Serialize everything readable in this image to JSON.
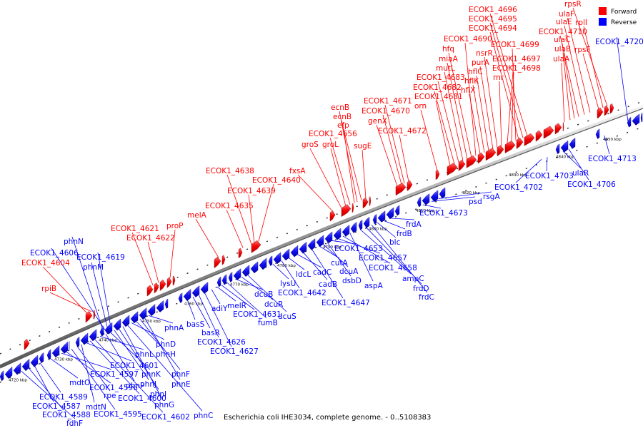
{
  "caption": "Escherichia coli IHE3034, complete genome. - 0..5108383",
  "legend": [
    {
      "label": "Forward",
      "color": "#ff0000"
    },
    {
      "label": "Reverse",
      "color": "#0000ff"
    }
  ],
  "colors": {
    "forward": "#ff0000",
    "reverse": "#0000ff",
    "backbone": "#888888"
  },
  "ticks": [
    "4720 kbp",
    "4730 kbp",
    "4740 kbp",
    "4750 kbp",
    "4760 kbp",
    "4770 kbp",
    "4780 kbp",
    "4790 kbp",
    "4800 kbp",
    "4810 kbp",
    "4820 kbp",
    "4830 kbp",
    "4840 kbp",
    "4850 kbp"
  ],
  "forward_labels": [
    "rpiB",
    "ECOK1_4604",
    "ECOK1_4621",
    "ECOK1_4622",
    "proP",
    "melA",
    "ECOK1_4635",
    "ECOK1_4638",
    "ECOK1_4639",
    "ECOK1_4640",
    "fxsA",
    "groS",
    "groL",
    "ECOK1_4656",
    "efp",
    "ecnB",
    "ecnB",
    "sugE",
    "genX",
    "ECOK1_4670",
    "ECOK1_4671",
    "ECOK1_4672",
    "orn",
    "ECOK1_4681",
    "ECOK1_4682",
    "ECOK1_4683",
    "mutL",
    "miaA",
    "hfq",
    "ECOK1_4690",
    "hflX",
    "hflK",
    "hflC",
    "purA",
    "nsrR",
    "rnr",
    "ECOK1_4697",
    "ECOK1_4698",
    "ECOK1_4699",
    "ECOK1_4694",
    "ECOK1_4695",
    "ECOK1_4696",
    "ulaA",
    "ulaB",
    "ulaC",
    "ECOK1_4710",
    "ulaE",
    "ulaF",
    "rpsF",
    "rplI",
    "rpsR"
  ],
  "reverse_labels": [
    "phnN",
    "ECOK1_4606",
    "phnM",
    "ECOK1_4619",
    "fdhF",
    "ECOK1_4588",
    "ECOK1_4587",
    "ECOK1_4589",
    "mdtO",
    "ECOK1_4597",
    "ECOK1_4596",
    "ECOK1_4595",
    "rpe",
    "mdtN",
    "ECOK1_4601",
    "ECOK1_4600",
    "ECOK1_4602",
    "phnL",
    "phnP",
    "phnK",
    "phnJ",
    "phnI",
    "phnG",
    "phnC",
    "phnD",
    "phnH",
    "phnF",
    "phnE",
    "phnA",
    "basS",
    "basR",
    "ECOK1_4626",
    "ECOK1_4627",
    "adiY",
    "melR",
    "ECOK1_4631",
    "fumB",
    "dcuB",
    "dcuR",
    "dcuS",
    "lysU",
    "ECOK1_4642",
    "ldcL",
    "cadC",
    "cadB",
    "ECOK1_4647",
    "cutA",
    "dcuA",
    "dsbD",
    "ECOK1_4653",
    "ECOK1_4657",
    "ECOK1_4658",
    "aspA",
    "ampC",
    "frdD",
    "frdC",
    "blc",
    "frdB",
    "frdA",
    "ECOK1_4673",
    "psd",
    "rsgA",
    "ECOK1_4702",
    "ECOK1_4703",
    "ulaR",
    "ECOK1_4706",
    "ECOK1_4713",
    "ECOK1_4720"
  ]
}
